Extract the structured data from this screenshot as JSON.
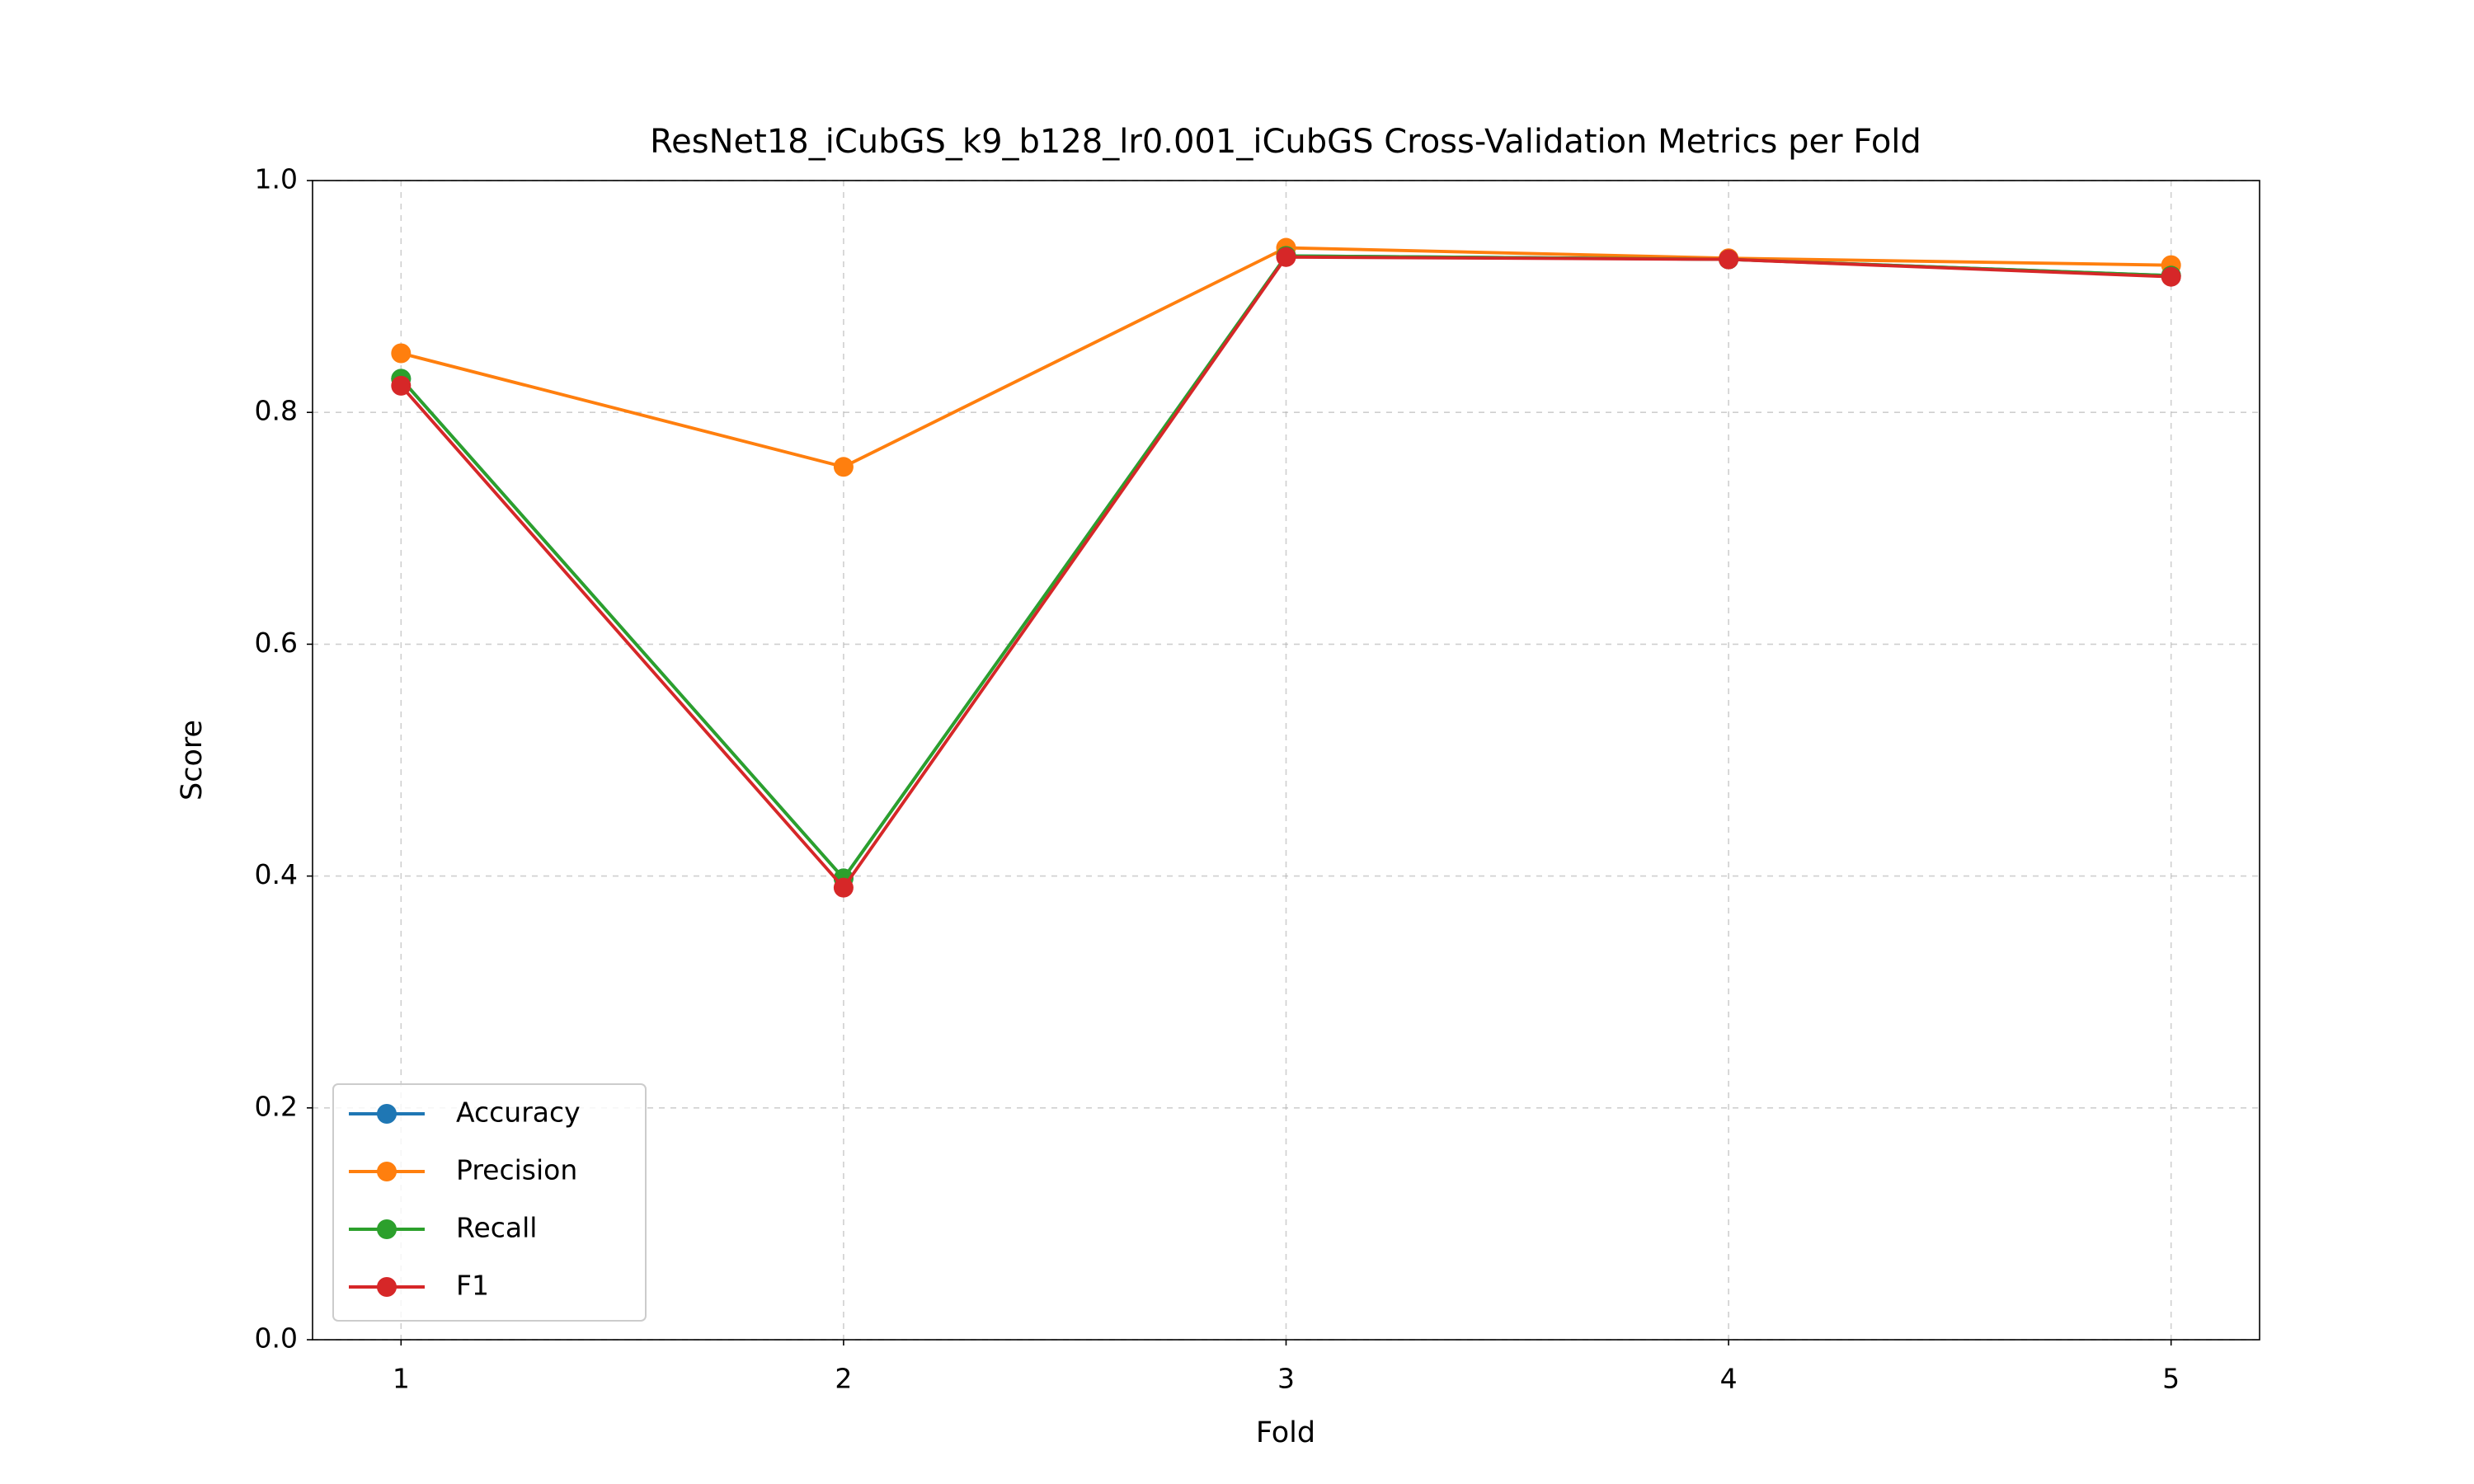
{
  "chart_data": {
    "type": "line",
    "title": "ResNet18_iCubGS_k9_b128_lr0.001_iCubGS Cross-Validation Metrics per Fold",
    "x_label": "Fold",
    "y_label": "Score",
    "x": [
      1,
      2,
      3,
      4,
      5
    ],
    "series": [
      {
        "name": "Accuracy",
        "color": "#1f77b4",
        "values": [
          0.829,
          0.398,
          0.935,
          0.932,
          0.918
        ]
      },
      {
        "name": "Precision",
        "color": "#ff7f0e",
        "values": [
          0.851,
          0.753,
          0.942,
          0.933,
          0.927
        ]
      },
      {
        "name": "Recall",
        "color": "#2ca02c",
        "values": [
          0.829,
          0.398,
          0.935,
          0.932,
          0.918
        ]
      },
      {
        "name": "F1",
        "color": "#d62728",
        "values": [
          0.823,
          0.39,
          0.934,
          0.932,
          0.917
        ]
      }
    ],
    "xlim": [
      0.8,
      5.2
    ],
    "xticks": [
      1,
      2,
      3,
      4,
      5
    ],
    "ylim": [
      0,
      1
    ],
    "yticks": [
      {
        "value": 0,
        "label": "0.0"
      },
      {
        "value": 0.2,
        "label": "0.2"
      },
      {
        "value": 0.4,
        "label": "0.4"
      },
      {
        "value": 0.6,
        "label": "0.6"
      },
      {
        "value": 0.8,
        "label": "0.8"
      },
      {
        "value": 1,
        "label": "1.0"
      }
    ],
    "grid": true,
    "legend_position": "lower-left"
  }
}
